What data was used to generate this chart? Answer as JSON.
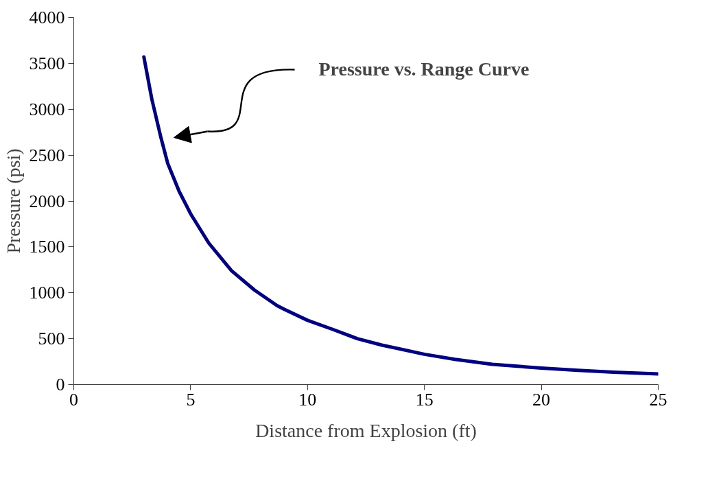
{
  "chart_data": {
    "type": "line",
    "xlabel": "Distance from Explosion (ft)",
    "ylabel": "Pressure (psi)",
    "xlim": [
      0,
      25
    ],
    "ylim": [
      0,
      4000
    ],
    "xticks": [
      0,
      5,
      10,
      15,
      20,
      25
    ],
    "yticks": [
      0,
      500,
      1000,
      1500,
      2000,
      2500,
      3000,
      3500,
      4000
    ],
    "grid": false,
    "marker": "none",
    "line_style": "solid",
    "annotations": [
      "Pressure vs. Range Curve"
    ],
    "series": [
      {
        "color": "#000080",
        "x": [
          3.0,
          3.34,
          3.73,
          4.02,
          4.5,
          5.0,
          5.78,
          6.75,
          7.73,
          8.7,
          9.0,
          10.0,
          11.09,
          12.13,
          13.18,
          15.0,
          16.3,
          17.9,
          20.0,
          21.56,
          23.1,
          25.0
        ],
        "values": [
          3570,
          3110,
          2690,
          2410,
          2110,
          1860,
          1540,
          1240,
          1030,
          860,
          820,
          700,
          600,
          500,
          430,
          330,
          275,
          220,
          180,
          155,
          135,
          115
        ]
      }
    ]
  }
}
